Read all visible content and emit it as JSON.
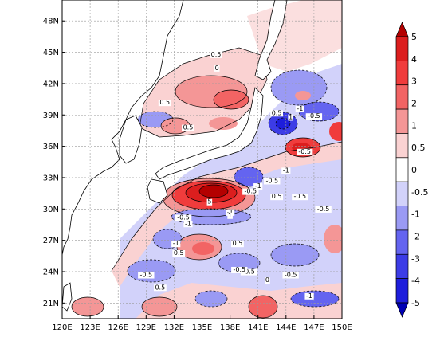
{
  "map": {
    "lon_ticks": [
      "120E",
      "123E",
      "126E",
      "129E",
      "132E",
      "135E",
      "138E",
      "141E",
      "144E",
      "147E",
      "150E"
    ],
    "lat_ticks": [
      "21N",
      "24N",
      "27N",
      "30N",
      "33N",
      "36N",
      "39N",
      "42N",
      "45N",
      "48N"
    ],
    "lon_range": [
      120,
      150
    ],
    "lat_range": [
      19.5,
      50
    ],
    "grid": true,
    "contour_labels": [
      {
        "text": "0.5",
        "lon": 136.5,
        "lat": 44.6
      },
      {
        "text": "0",
        "lon": 136.6,
        "lat": 43.3
      },
      {
        "text": "0.5",
        "lon": 131.0,
        "lat": 40.0
      },
      {
        "text": "0.5",
        "lon": 133.5,
        "lat": 37.6
      },
      {
        "text": "0.5",
        "lon": 143.0,
        "lat": 39.0
      },
      {
        "text": "-1",
        "lon": 145.5,
        "lat": 39.4
      },
      {
        "text": "1",
        "lon": 144.5,
        "lat": 38.6
      },
      {
        "text": "-0.5",
        "lon": 147.0,
        "lat": 38.7
      },
      {
        "text": "-0.5",
        "lon": 146.0,
        "lat": 35.3
      },
      {
        "text": "-1",
        "lon": 141.0,
        "lat": 32.0
      },
      {
        "text": "-0.5",
        "lon": 142.5,
        "lat": 32.5
      },
      {
        "text": "-1",
        "lon": 144.0,
        "lat": 33.5
      },
      {
        "text": "-0.5",
        "lon": 140.2,
        "lat": 31.5
      },
      {
        "text": "0.5",
        "lon": 143.0,
        "lat": 31.0
      },
      {
        "text": "-0.5",
        "lon": 145.5,
        "lat": 31.0
      },
      {
        "text": "-0.5",
        "lon": 148.0,
        "lat": 29.8
      },
      {
        "text": "-0.5",
        "lon": 133.0,
        "lat": 29.0
      },
      {
        "text": "-1",
        "lon": 133.5,
        "lat": 28.4
      },
      {
        "text": "5",
        "lon": 135.8,
        "lat": 30.5
      },
      {
        "text": "-1",
        "lon": 138.0,
        "lat": 29.5
      },
      {
        "text": "1",
        "lon": 138.0,
        "lat": 29.2
      },
      {
        "text": "0.5",
        "lon": 138.8,
        "lat": 26.5
      },
      {
        "text": "-1",
        "lon": 132.2,
        "lat": 26.5
      },
      {
        "text": "0.5",
        "lon": 132.5,
        "lat": 25.6
      },
      {
        "text": "-0.5",
        "lon": 140.0,
        "lat": 23.8
      },
      {
        "text": "0",
        "lon": 142.0,
        "lat": 23.0
      },
      {
        "text": "-0.5",
        "lon": 144.5,
        "lat": 23.5
      },
      {
        "text": "-0.5",
        "lon": 139.0,
        "lat": 24.0
      },
      {
        "text": "0.5",
        "lon": 130.5,
        "lat": 22.3
      },
      {
        "text": "-0.5",
        "lon": 129.0,
        "lat": 23.5
      },
      {
        "text": "-1",
        "lon": 146.5,
        "lat": 21.5
      }
    ]
  },
  "colorbar": {
    "labels": [
      "5",
      "4",
      "3",
      "2",
      "1",
      "0.5",
      "0",
      "-0.5",
      "-1",
      "-2",
      "-3",
      "-4",
      "-5"
    ],
    "colors": [
      "#b40000",
      "#dc1e1e",
      "#f03c3c",
      "#f26464",
      "#f49696",
      "#fad2d2",
      "#ffffff",
      "#d2d2fa",
      "#9a9af4",
      "#6464f0",
      "#3c3ce6",
      "#1e1edc",
      "#0000b4"
    ]
  }
}
